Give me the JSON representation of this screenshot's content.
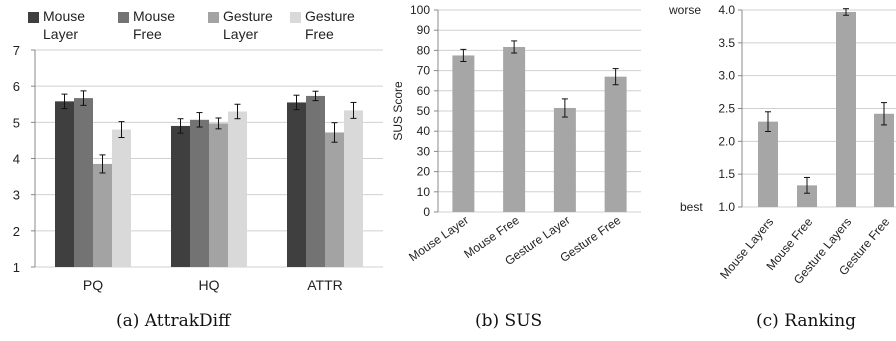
{
  "chart_data": [
    {
      "type": "bar",
      "caption": "(a) AttrakDiff",
      "categories": [
        "PQ",
        "HQ",
        "ATTR"
      ],
      "series": [
        {
          "name": "Mouse Layer",
          "color": "#3f3f3f",
          "values": [
            5.58,
            4.9,
            5.55
          ],
          "errors": [
            0.2,
            0.2,
            0.2
          ]
        },
        {
          "name": "Mouse Free",
          "color": "#737373",
          "values": [
            5.67,
            5.07,
            5.73
          ],
          "errors": [
            0.2,
            0.2,
            0.13
          ]
        },
        {
          "name": "Gesture Layer",
          "color": "#a3a3a3",
          "values": [
            3.85,
            4.97,
            4.72
          ],
          "errors": [
            0.25,
            0.15,
            0.27
          ]
        },
        {
          "name": "Gesture Free",
          "color": "#d9d9d9",
          "values": [
            4.8,
            5.3,
            5.33
          ],
          "errors": [
            0.22,
            0.2,
            0.22
          ]
        }
      ],
      "legend_labels": [
        [
          "Mouse",
          "Layer"
        ],
        [
          "Mouse",
          "Free"
        ],
        [
          "Gesture",
          "Layer"
        ],
        [
          "Gesture",
          "Free"
        ]
      ],
      "legend_position": "top",
      "ylim": [
        1,
        7
      ],
      "yticks": [
        "1",
        "2",
        "3",
        "4",
        "5",
        "6",
        "7"
      ],
      "xlabel": "",
      "ylabel": "",
      "title": "",
      "grid": true
    },
    {
      "type": "bar",
      "caption": "(b) SUS",
      "categories": [
        "Mouse Layer",
        "Mouse Free",
        "Gesture Layer",
        "Gesture Free"
      ],
      "series": [
        {
          "color": "#a6a6a6",
          "values": [
            77.5,
            81.7,
            51.5,
            67.0
          ],
          "errors": [
            3,
            3,
            4.5,
            4
          ]
        }
      ],
      "ylim": [
        0,
        100
      ],
      "yticks": [
        "0",
        "10",
        "20",
        "30",
        "40",
        "50",
        "60",
        "70",
        "80",
        "90",
        "100"
      ],
      "ylabel": "SUS Score",
      "xlabel": "",
      "title": "",
      "grid": true
    },
    {
      "type": "bar",
      "caption": "(c) Ranking",
      "categories": [
        "Mouse Layers",
        "Mouse Free",
        "Gesture Layers",
        "Gesture Free"
      ],
      "series": [
        {
          "color": "#a6a6a6",
          "values": [
            2.3,
            1.33,
            3.97,
            2.42
          ],
          "errors": [
            0.15,
            0.12,
            0.05,
            0.17
          ]
        }
      ],
      "ylim": [
        1,
        4
      ],
      "yticks": [
        "1.0",
        "1.5",
        "2.0",
        "2.5",
        "3.0",
        "3.5",
        "4.0"
      ],
      "ytick_prefix_top": "worse",
      "ytick_prefix_bottom": "best",
      "xlabel": "",
      "ylabel": "",
      "title": "",
      "grid": true
    }
  ]
}
